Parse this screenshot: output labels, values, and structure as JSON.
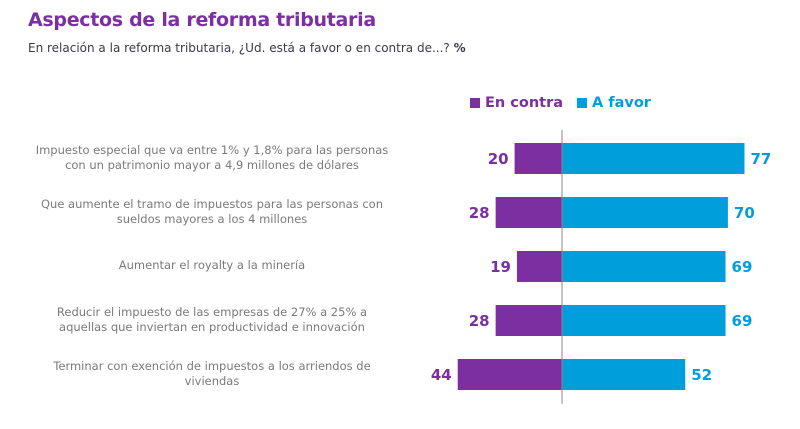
{
  "title": "Aspectos de la reforma tributaria",
  "subtitle": "En relación a la reforma tributaria, ¿Ud. está a favor o en contra de...?",
  "subtitle_unit": "%",
  "colors": {
    "contra": "#7b2fa0",
    "favor": "#009fdb",
    "axis": "#888888"
  },
  "chart_data": {
    "type": "bar",
    "orientation": "horizontal-diverging",
    "title": "Aspectos de la reforma tributaria",
    "subtitle": "En relación a la reforma tributaria, ¿Ud. está a favor o en contra de...?  %",
    "legend": [
      "En contra",
      "A favor"
    ],
    "legend_position": "top-right",
    "grid": false,
    "categories": [
      [
        "Impuesto especial que va entre 1% y 1,8% para las personas",
        "con un patrimonio mayor a 4,9 millones de dólares"
      ],
      [
        "Que aumente el tramo de impuestos para las personas con",
        "sueldos mayores a los 4 millones"
      ],
      [
        "Aumentar el royalty a la minería"
      ],
      [
        "Reducir el impuesto de las empresas de 27% a 25% a",
        "aquellas que inviertan en productividad e innovación"
      ],
      [
        "Terminar con exención de impuestos a los arriendos de",
        "viviendas"
      ]
    ],
    "series": [
      {
        "name": "En contra",
        "values": [
          20,
          28,
          19,
          28,
          44
        ]
      },
      {
        "name": "A favor",
        "values": [
          77,
          70,
          69,
          69,
          52
        ]
      }
    ],
    "unit": "%"
  }
}
